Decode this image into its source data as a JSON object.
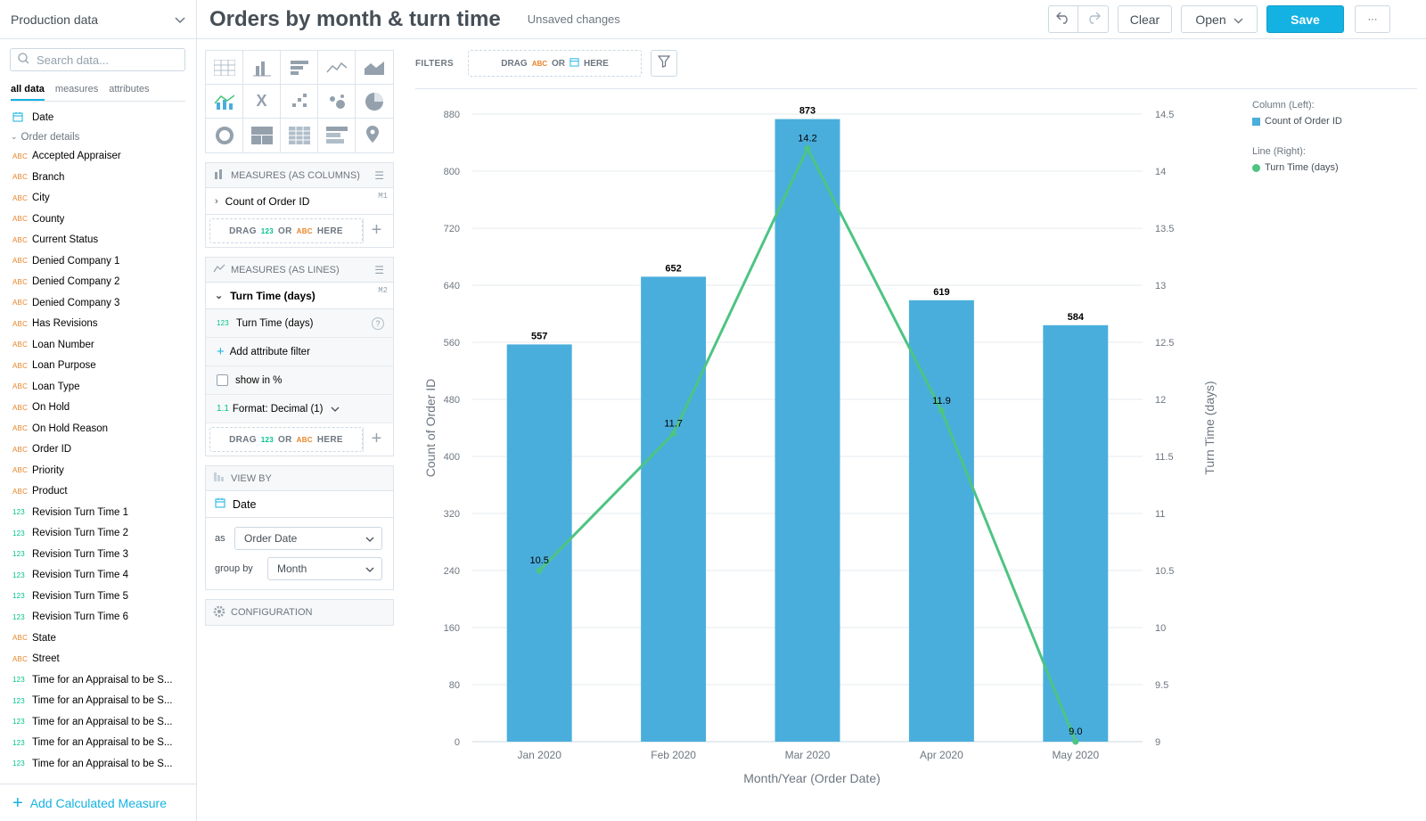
{
  "app": {
    "dataset": "Production data",
    "search_placeholder": "Search data...",
    "tabs": [
      "all data",
      "measures",
      "attributes"
    ],
    "date_item": "Date",
    "group_label": "Order details",
    "data_items": [
      {
        "type": "ABC",
        "label": "Accepted Appraiser"
      },
      {
        "type": "ABC",
        "label": "Branch"
      },
      {
        "type": "ABC",
        "label": "City"
      },
      {
        "type": "ABC",
        "label": "County"
      },
      {
        "type": "ABC",
        "label": "Current Status"
      },
      {
        "type": "ABC",
        "label": "Denied Company 1"
      },
      {
        "type": "ABC",
        "label": "Denied Company 2"
      },
      {
        "type": "ABC",
        "label": "Denied Company 3"
      },
      {
        "type": "ABC",
        "label": "Has Revisions"
      },
      {
        "type": "ABC",
        "label": "Loan Number"
      },
      {
        "type": "ABC",
        "label": "Loan Purpose"
      },
      {
        "type": "ABC",
        "label": "Loan Type"
      },
      {
        "type": "ABC",
        "label": "On Hold"
      },
      {
        "type": "ABC",
        "label": "On Hold Reason"
      },
      {
        "type": "ABC",
        "label": "Order ID"
      },
      {
        "type": "ABC",
        "label": "Priority"
      },
      {
        "type": "ABC",
        "label": "Product"
      },
      {
        "type": "123",
        "label": "Revision Turn Time 1"
      },
      {
        "type": "123",
        "label": "Revision Turn Time 2"
      },
      {
        "type": "123",
        "label": "Revision Turn Time 3"
      },
      {
        "type": "123",
        "label": "Revision Turn Time 4"
      },
      {
        "type": "123",
        "label": "Revision Turn Time 5"
      },
      {
        "type": "123",
        "label": "Revision Turn Time 6"
      },
      {
        "type": "ABC",
        "label": "State"
      },
      {
        "type": "ABC",
        "label": "Street"
      },
      {
        "type": "123",
        "label": "Time for an Appraisal to be S..."
      },
      {
        "type": "123",
        "label": "Time for an Appraisal to be S..."
      },
      {
        "type": "123",
        "label": "Time for an Appraisal to be S..."
      },
      {
        "type": "123",
        "label": "Time for an Appraisal to be S..."
      },
      {
        "type": "123",
        "label": "Time for an Appraisal to be S..."
      }
    ],
    "add_calculated": "Add Calculated Measure"
  },
  "header": {
    "title": "Orders by month & turn time",
    "status": "Unsaved changes",
    "clear": "Clear",
    "open": "Open",
    "save": "Save",
    "more": "···"
  },
  "config": {
    "measures_columns_title": "MEASURES (AS COLUMNS)",
    "measure_col": "Count of Order ID",
    "measure_col_id": "M1",
    "measures_lines_title": "MEASURES (AS LINES)",
    "measure_line": "Turn Time (days)",
    "measure_line_id": "M2",
    "measure_line_sub": "Turn Time (days)",
    "add_attr_filter": "Add attribute filter",
    "show_pct": "show in %",
    "format": "Format: Decimal (1)",
    "format_prefix": "1.1",
    "drag_word": "DRAG",
    "or_word": "OR",
    "here_word": "HERE",
    "num_tag": "123",
    "abc_tag": "ABC",
    "view_by_title": "VIEW BY",
    "view_by_item": "Date",
    "as_label": "as",
    "as_value": "Order Date",
    "group_by_label": "group by",
    "group_by_value": "Month",
    "configuration_title": "CONFIGURATION"
  },
  "filters": {
    "label": "FILTERS",
    "drag": "DRAG",
    "or": "OR",
    "here": "HERE",
    "abc": "ABC"
  },
  "legend": {
    "col_title": "Column (Left):",
    "col_name": "Count of Order ID",
    "line_title": "Line (Right):",
    "line_name": "Turn Time (days)"
  },
  "chart_data": {
    "type": "bar",
    "categories": [
      "Jan 2020",
      "Feb 2020",
      "Mar 2020",
      "Apr 2020",
      "May 2020"
    ],
    "series": [
      {
        "name": "Count of Order ID",
        "type": "bar",
        "axis": "left",
        "values": [
          557,
          652,
          873,
          619,
          584
        ],
        "labels": [
          "557",
          "652",
          "873",
          "619",
          "584"
        ],
        "color": "#4aaedc"
      },
      {
        "name": "Turn Time (days)",
        "type": "line",
        "axis": "right",
        "values": [
          10.5,
          11.7,
          14.2,
          11.9,
          9.0
        ],
        "labels": [
          "10.5",
          "11.7",
          "14.2",
          "11.9",
          "9.0"
        ],
        "color": "#4ec483"
      }
    ],
    "xlabel": "Month/Year (Order Date)",
    "ylabel_left": "Count of Order ID",
    "ylabel_right": "Turn Time (days)",
    "ylim_left": [
      0,
      880
    ],
    "yticks_left": [
      "0",
      "80",
      "160",
      "240",
      "320",
      "400",
      "480",
      "560",
      "640",
      "720",
      "800",
      "880"
    ],
    "ylim_right": [
      9,
      14.5
    ],
    "yticks_right": [
      "9",
      "9.5",
      "10",
      "10.5",
      "11",
      "11.5",
      "12",
      "12.5",
      "13",
      "13.5",
      "14",
      "14.5"
    ],
    "grid": true,
    "legend_position": "right"
  }
}
